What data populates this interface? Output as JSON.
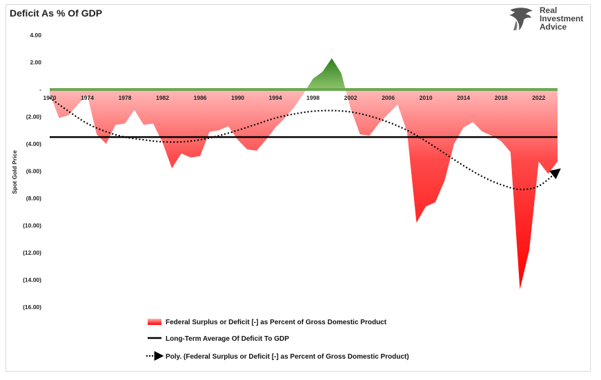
{
  "chart_data": {
    "type": "area",
    "title": "Deficit As % Of GDP",
    "ylabel": "Spot Gold Price",
    "ylim": [
      -16,
      4
    ],
    "y_ticks": [
      {
        "value": 4,
        "label": "4.00"
      },
      {
        "value": 2,
        "label": "2.00"
      },
      {
        "value": 0,
        "label": "-"
      },
      {
        "value": -2,
        "label": "(2.00)"
      },
      {
        "value": -4,
        "label": "(4.00)"
      },
      {
        "value": -6,
        "label": "(6.00)"
      },
      {
        "value": -8,
        "label": "(8.00)"
      },
      {
        "value": -10,
        "label": "(10.00)"
      },
      {
        "value": -12,
        "label": "(12.00)"
      },
      {
        "value": -14,
        "label": "(14.00)"
      },
      {
        "value": -16,
        "label": "(16.00)"
      }
    ],
    "x_ticks": [
      "1970",
      "1974",
      "1978",
      "1982",
      "1986",
      "1990",
      "1994",
      "1998",
      "2002",
      "2006",
      "2010",
      "2014",
      "2018",
      "2022"
    ],
    "xlim": [
      1970,
      2024
    ],
    "series": [
      {
        "name": "Federal Surplus or Deficit [-] as Percent of Gross Domestic Product",
        "x": [
          1970,
          1971,
          1972,
          1973,
          1974,
          1975,
          1976,
          1977,
          1978,
          1979,
          1980,
          1981,
          1982,
          1983,
          1984,
          1985,
          1986,
          1987,
          1988,
          1989,
          1990,
          1991,
          1992,
          1993,
          1994,
          1995,
          1996,
          1997,
          1998,
          1999,
          2000,
          2001,
          2002,
          2003,
          2004,
          2005,
          2006,
          2007,
          2008,
          2009,
          2010,
          2011,
          2012,
          2013,
          2014,
          2015,
          2016,
          2017,
          2018,
          2019,
          2020,
          2021,
          2022,
          2023,
          2024
        ],
        "values": [
          -0.3,
          -2.1,
          -1.9,
          -1.1,
          -0.4,
          -3.3,
          -4.0,
          -2.6,
          -2.5,
          -1.5,
          -2.6,
          -2.5,
          -3.9,
          -5.8,
          -4.7,
          -5.0,
          -4.9,
          -3.1,
          -3.0,
          -2.7,
          -3.7,
          -4.4,
          -4.5,
          -3.7,
          -2.8,
          -2.1,
          -1.3,
          -0.3,
          0.8,
          1.3,
          2.3,
          1.2,
          -1.4,
          -3.3,
          -3.4,
          -2.5,
          -1.8,
          -1.1,
          -3.1,
          -9.8,
          -8.6,
          -8.3,
          -6.7,
          -4.0,
          -2.8,
          -2.4,
          -3.1,
          -3.4,
          -3.8,
          -4.6,
          -14.7,
          -11.8,
          -5.3,
          -6.2,
          -5.3
        ]
      },
      {
        "name": "Long-Term Average Of Deficit To GDP",
        "value": -3.5
      },
      {
        "name": "Poly. (Federal Surplus or Deficit [-] as Percent of Gross Domestic Product)",
        "x": [
          1970,
          1972,
          1974,
          1976,
          1978,
          1980,
          1982,
          1984,
          1986,
          1988,
          1990,
          1992,
          1994,
          1996,
          1998,
          2000,
          2002,
          2004,
          2006,
          2008,
          2010,
          2012,
          2014,
          2016,
          2018,
          2020,
          2022,
          2024
        ],
        "values": [
          -0.6,
          -1.6,
          -2.5,
          -3.1,
          -3.5,
          -3.7,
          -3.85,
          -3.85,
          -3.7,
          -3.4,
          -3.0,
          -2.55,
          -2.1,
          -1.8,
          -1.6,
          -1.55,
          -1.65,
          -1.95,
          -2.4,
          -3.0,
          -3.8,
          -4.7,
          -5.6,
          -6.4,
          -7.0,
          -7.35,
          -7.1,
          -6.0
        ]
      }
    ],
    "colors": {
      "deficit_top": "#ffb3b3",
      "deficit_bottom": "#ff0000",
      "surplus_top": "#2e7d1e",
      "surplus_bottom": "#8ec46a",
      "average_line": "#000000",
      "trend_line": "#000000"
    },
    "legend_placement": "bottom-center",
    "grid": false
  },
  "branding": {
    "logo_line1": "Real",
    "logo_line2": "Investment",
    "logo_line3": "Advice",
    "logo_icon": "eagle-icon"
  }
}
